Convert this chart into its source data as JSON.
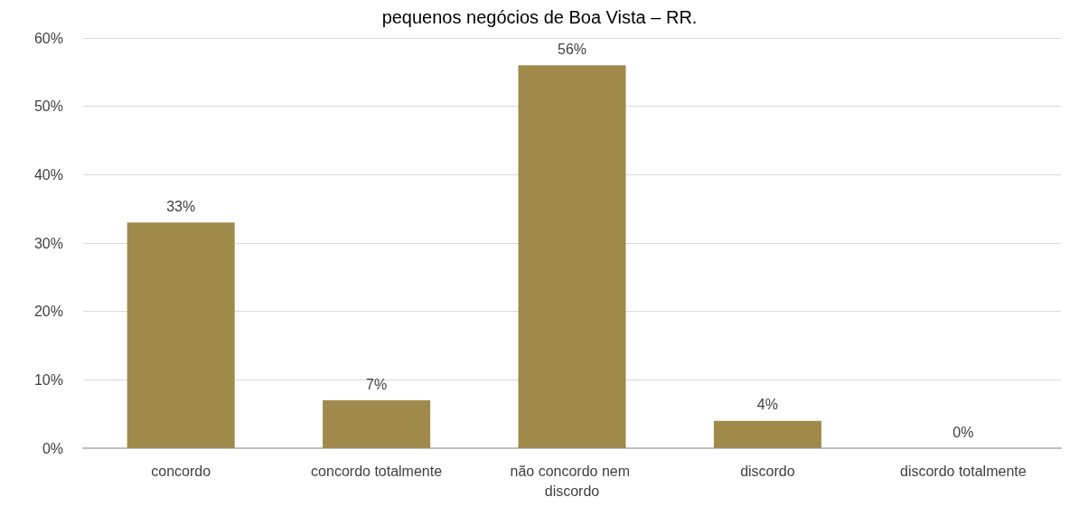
{
  "chart_data": {
    "type": "bar",
    "title": "pequenos negócios de Boa Vista – RR.",
    "categories": [
      "concordo",
      "concordo totalmente",
      "não concordo nem discordo",
      "discordo",
      "discordo totalmente"
    ],
    "values": [
      33,
      7,
      56,
      4,
      0
    ],
    "value_labels": [
      "33%",
      "7%",
      "56%",
      "4%",
      "0%"
    ],
    "color": "#a08a4b",
    "ylim": [
      0,
      60
    ],
    "yticks": [
      {
        "value": 0,
        "label": "0%"
      },
      {
        "value": 10,
        "label": "10%"
      },
      {
        "value": 20,
        "label": "20%"
      },
      {
        "value": 30,
        "label": "30%"
      },
      {
        "value": 40,
        "label": "40%"
      },
      {
        "value": 50,
        "label": "50%"
      },
      {
        "value": 60,
        "label": "60%"
      }
    ],
    "grid": "y"
  }
}
